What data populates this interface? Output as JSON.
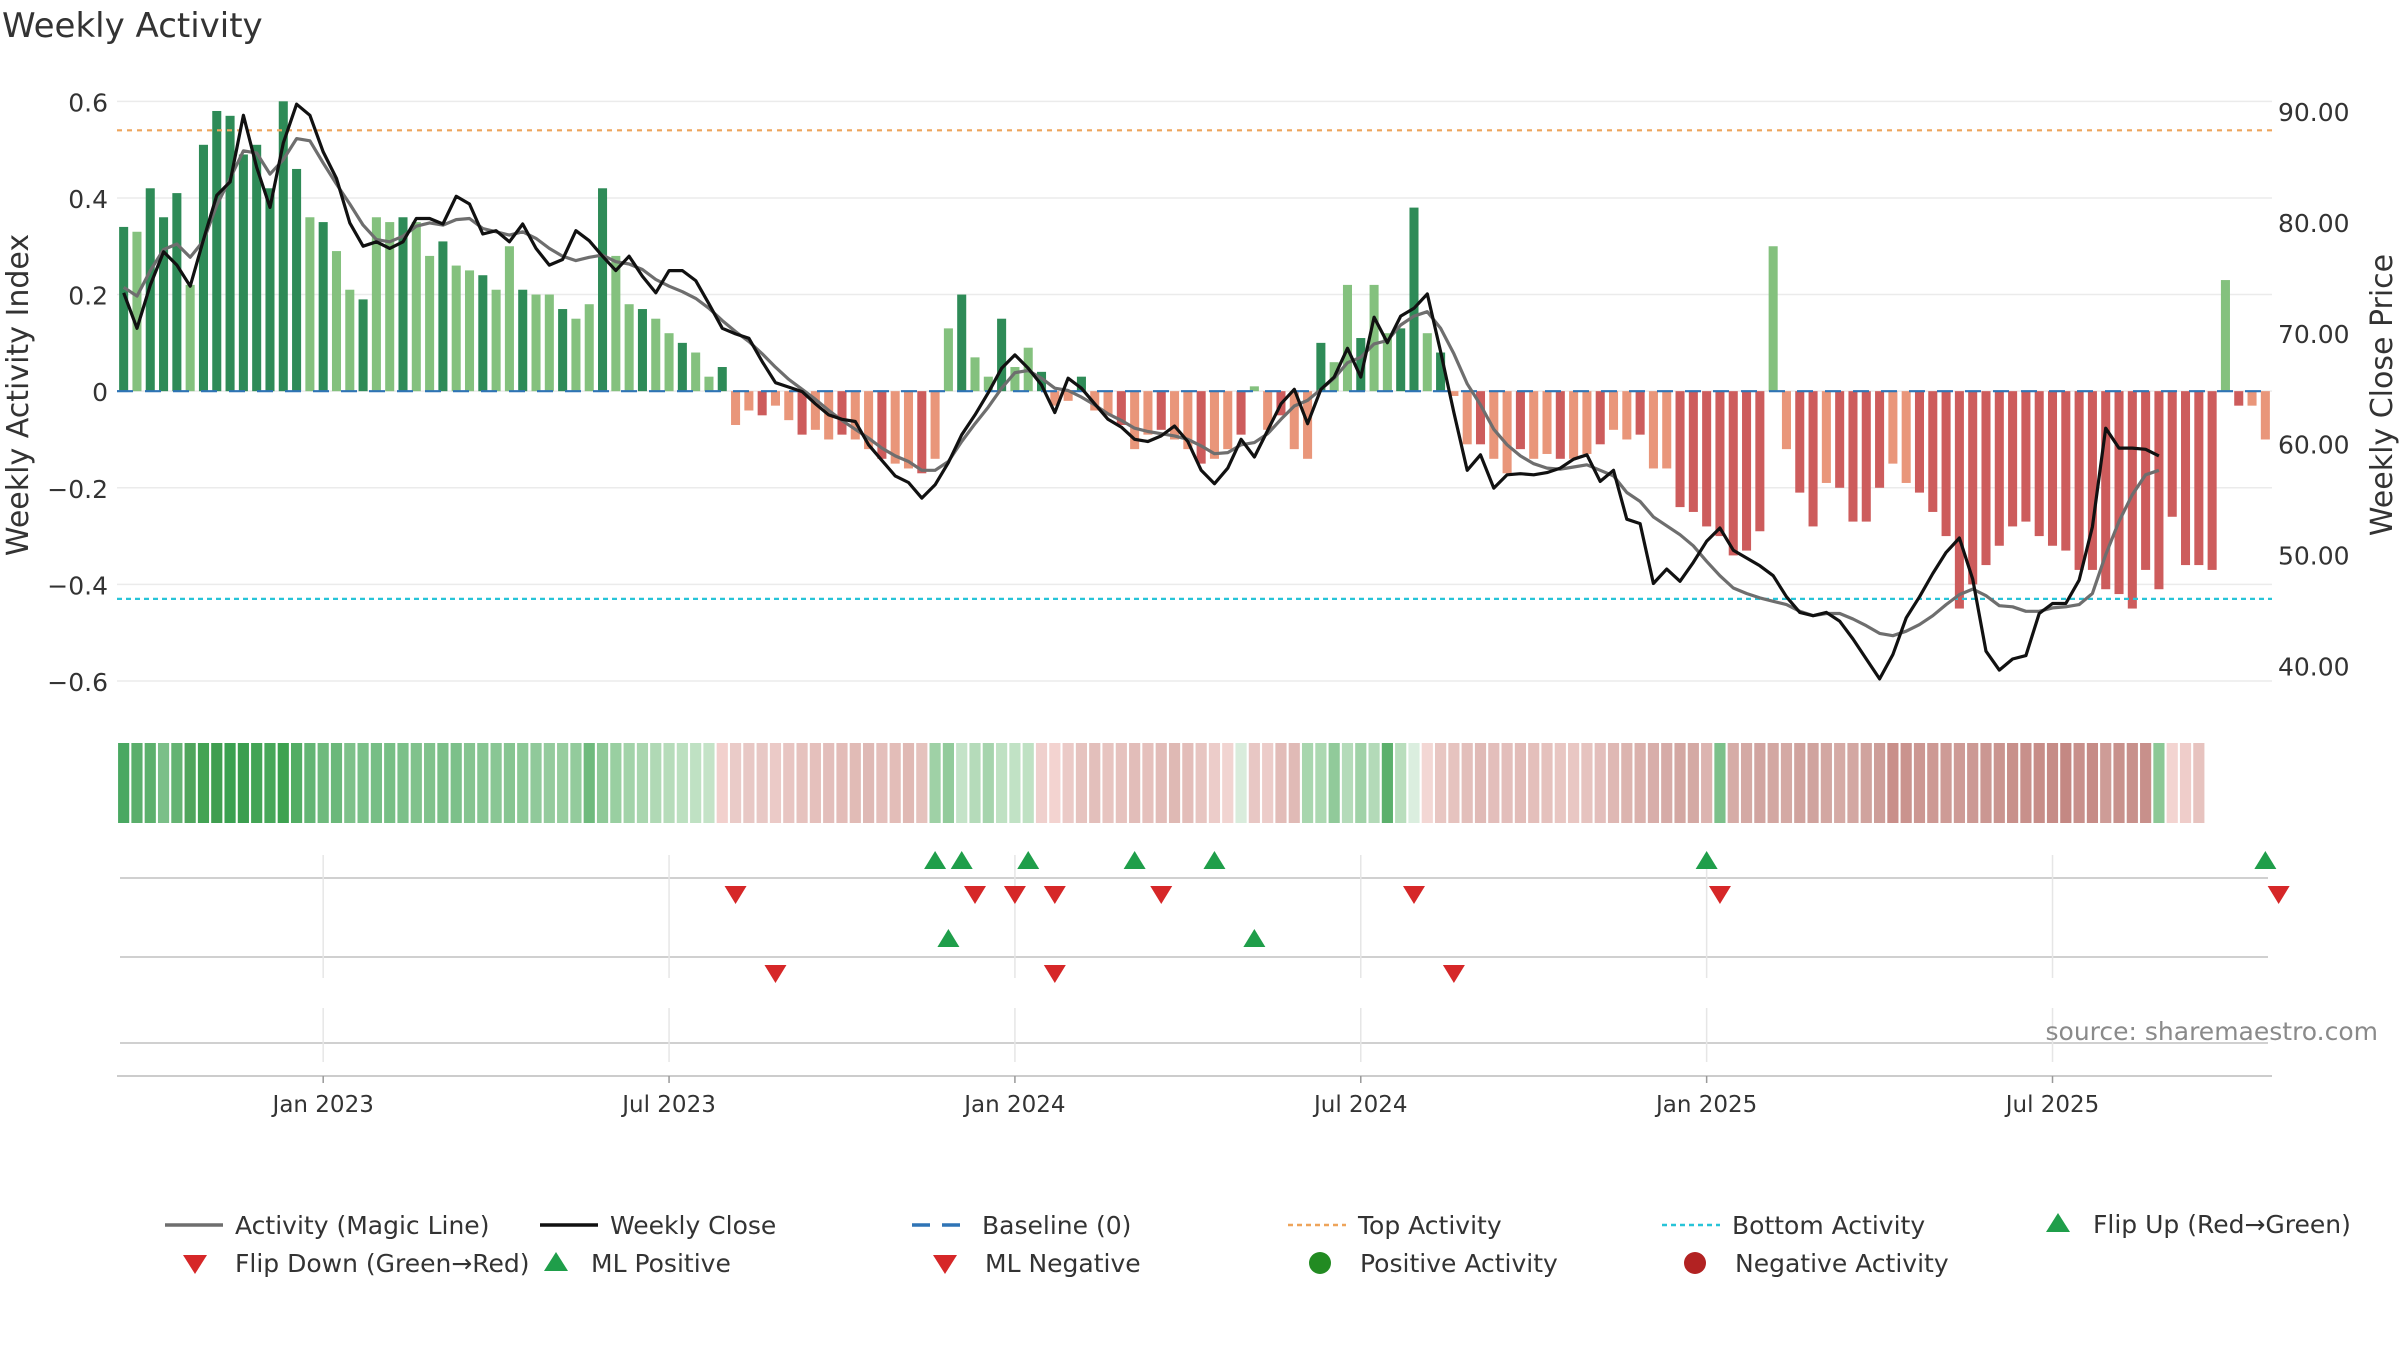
{
  "chart_data": {
    "type": "bar",
    "title": "Weekly Activity",
    "ylabel_left": "Weekly Activity Index",
    "ylabel_right": "Weekly Close Price",
    "ylim_left": [
      -0.66,
      0.64
    ],
    "ylim_right": [
      36.0,
      92.6
    ],
    "yticks_left": [
      {
        "v": 0.6,
        "label": "0.6"
      },
      {
        "v": 0.4,
        "label": "0.4"
      },
      {
        "v": 0.2,
        "label": "0.2"
      },
      {
        "v": 0,
        "label": "0"
      },
      {
        "v": -0.2,
        "label": "−0.2"
      },
      {
        "v": -0.4,
        "label": "−0.4"
      },
      {
        "v": -0.6,
        "label": "−0.6"
      }
    ],
    "yticks_right": [
      {
        "v": 90,
        "label": "90.00"
      },
      {
        "v": 80,
        "label": "80.00"
      },
      {
        "v": 70,
        "label": "70.00"
      },
      {
        "v": 60,
        "label": "60.00"
      },
      {
        "v": 50,
        "label": "50.00"
      },
      {
        "v": 40,
        "label": "40.00"
      }
    ],
    "xticks": [
      {
        "week": 15,
        "label": "Jan 2023"
      },
      {
        "week": 41,
        "label": "Jul 2023"
      },
      {
        "week": 67,
        "label": "Jan 2024"
      },
      {
        "week": 93,
        "label": "Jul 2024"
      },
      {
        "week": 119,
        "label": "Jan 2025"
      },
      {
        "week": 145,
        "label": "Jul 2025"
      }
    ],
    "top_activity": 0.54,
    "bottom_activity": -0.43,
    "baseline": 0,
    "activity": [
      0.34,
      0.33,
      0.42,
      0.36,
      0.41,
      0.22,
      0.51,
      0.58,
      0.57,
      0.49,
      0.51,
      0.42,
      0.6,
      0.46,
      0.36,
      0.35,
      0.29,
      0.21,
      0.19,
      0.36,
      0.35,
      0.36,
      0.35,
      0.28,
      0.31,
      0.26,
      0.25,
      0.24,
      0.21,
      0.3,
      0.21,
      0.2,
      0.2,
      0.17,
      0.15,
      0.18,
      0.42,
      0.28,
      0.18,
      0.17,
      0.15,
      0.12,
      0.1,
      0.08,
      0.03,
      0.05,
      -0.07,
      -0.04,
      -0.05,
      -0.03,
      -0.06,
      -0.09,
      -0.08,
      -0.1,
      -0.09,
      -0.1,
      -0.12,
      -0.14,
      -0.15,
      -0.16,
      -0.17,
      -0.14,
      0.13,
      0.2,
      0.07,
      0.03,
      0.15,
      0.05,
      0.09,
      0.04,
      -0.03,
      -0.02,
      0.03,
      -0.04,
      -0.05,
      -0.07,
      -0.12,
      -0.09,
      -0.08,
      -0.1,
      -0.12,
      -0.15,
      -0.14,
      -0.12,
      -0.09,
      0.01,
      -0.08,
      -0.05,
      -0.12,
      -0.14,
      0.1,
      0.06,
      0.22,
      0.11,
      0.22,
      0.12,
      0.13,
      0.38,
      0.12,
      0.08,
      -0.01,
      -0.11,
      -0.11,
      -0.14,
      -0.17,
      -0.12,
      -0.14,
      -0.13,
      -0.14,
      -0.14,
      -0.13,
      -0.11,
      -0.08,
      -0.1,
      -0.09,
      -0.16,
      -0.16,
      -0.24,
      -0.25,
      -0.28,
      -0.3,
      -0.34,
      -0.33,
      -0.29,
      0.3,
      -0.12,
      -0.21,
      -0.28,
      -0.19,
      -0.2,
      -0.27,
      -0.27,
      -0.2,
      -0.15,
      -0.19,
      -0.21,
      -0.25,
      -0.3,
      -0.45,
      -0.4,
      -0.36,
      -0.32,
      -0.28,
      -0.27,
      -0.3,
      -0.32,
      -0.33,
      -0.37,
      -0.37,
      -0.41,
      -0.42,
      -0.45,
      -0.37,
      -0.41,
      -0.26,
      -0.36,
      -0.36,
      -0.37,
      0.23,
      -0.03,
      -0.03,
      -0.1
    ],
    "close": [
      73.6,
      70.4,
      74.3,
      77.3,
      76.1,
      74.2,
      78.4,
      82.4,
      83.6,
      89.6,
      84.9,
      81.3,
      87.1,
      90.6,
      89.6,
      86.3,
      83.9,
      79.9,
      77.8,
      78.2,
      77.6,
      78.2,
      80.3,
      80.3,
      79.8,
      82.3,
      81.6,
      78.9,
      79.2,
      78.2,
      79.8,
      77.6,
      76.1,
      76.6,
      79.2,
      78.3,
      76.9,
      75.6,
      76.9,
      75.1,
      73.6,
      75.6,
      75.6,
      74.7,
      72.6,
      70.4,
      69.9,
      69.5,
      67.4,
      65.5,
      65.1,
      64.7,
      63.6,
      62.6,
      62.2,
      62.0,
      59.9,
      58.5,
      57.1,
      56.5,
      55.1,
      56.3,
      58.3,
      60.8,
      62.6,
      64.6,
      66.8,
      68.0,
      66.8,
      65.3,
      62.8,
      65.9,
      65.0,
      63.6,
      62.2,
      61.5,
      60.4,
      60.2,
      60.7,
      61.6,
      60.2,
      57.6,
      56.4,
      57.8,
      60.4,
      58.8,
      61.2,
      63.6,
      64.9,
      61.8,
      64.9,
      66.0,
      68.6,
      66.0,
      71.4,
      69.1,
      71.5,
      72.2,
      73.5,
      68.3,
      62.8,
      57.6,
      59.0,
      56.0,
      57.2,
      57.3,
      57.2,
      57.4,
      57.8,
      58.6,
      59.0,
      56.6,
      57.6,
      53.2,
      52.8,
      47.4,
      48.7,
      47.6,
      49.3,
      51.2,
      52.4,
      50.4,
      49.7,
      49.0,
      48.1,
      46.2,
      44.8,
      44.5,
      44.8,
      44.0,
      42.4,
      40.6,
      38.8,
      41.0,
      44.3,
      46.2,
      48.3,
      50.2,
      51.5,
      47.8,
      41.3,
      39.6,
      40.6,
      40.9,
      44.7,
      45.6,
      45.6,
      47.7,
      52.5,
      61.4,
      59.6,
      59.6,
      59.5,
      58.9
    ],
    "magic_line": [
      74.1,
      73.3,
      75.6,
      77.5,
      78.0,
      76.8,
      78.3,
      81.5,
      83.9,
      86.4,
      86.2,
      84.3,
      85.6,
      87.5,
      87.3,
      85.3,
      83.4,
      81.6,
      79.7,
      78.4,
      78.2,
      78.7,
      79.6,
      79.9,
      79.7,
      80.2,
      80.3,
      79.4,
      79.1,
      78.8,
      79.1,
      78.5,
      77.6,
      76.9,
      76.5,
      76.8,
      77.0,
      76.4,
      76.2,
      75.7,
      74.8,
      74.2,
      73.7,
      73.1,
      72.2,
      71.1,
      70.1,
      69.2,
      68.1,
      66.9,
      65.8,
      64.9,
      64.0,
      63.0,
      62.1,
      61.3,
      60.5,
      59.6,
      58.9,
      58.4,
      57.6,
      57.6,
      58.4,
      60.2,
      61.8,
      63.3,
      65.0,
      66.4,
      66.6,
      65.9,
      65.0,
      64.8,
      64.2,
      63.5,
      62.7,
      62.1,
      61.4,
      61.1,
      60.9,
      60.7,
      60.4,
      59.8,
      59.1,
      59.2,
      59.9,
      60.1,
      60.9,
      62.2,
      63.4,
      63.9,
      64.9,
      65.9,
      67.3,
      67.8,
      69.0,
      69.3,
      70.7,
      71.5,
      71.9,
      70.4,
      68.1,
      65.4,
      63.5,
      61.3,
      59.9,
      58.9,
      58.2,
      57.8,
      57.7,
      57.9,
      58.1,
      57.6,
      57.1,
      55.6,
      54.8,
      53.4,
      52.6,
      51.8,
      50.8,
      49.4,
      48.1,
      47.0,
      46.5,
      46.1,
      45.8,
      45.5,
      44.9,
      44.5,
      44.7,
      44.7,
      44.2,
      43.6,
      42.9,
      42.7,
      43.1,
      43.7,
      44.5,
      45.5,
      46.4,
      46.9,
      46.3,
      45.4,
      45.3,
      44.9,
      44.9,
      45.2,
      45.3,
      45.5,
      46.5,
      50.0,
      53.0,
      55.4,
      57.2,
      57.6
    ],
    "color_strip": [
      "#4aa862",
      "#5aae6b",
      "#5cb06c",
      "#7bbf88",
      "#64b372",
      "#4fa55c",
      "#43a354",
      "#3f9e50",
      "#3aa050",
      "#3b9e4f",
      "#43a455",
      "#47a759",
      "#3da250",
      "#52ad64",
      "#63b574",
      "#6fba7d",
      "#6bb87a",
      "#7ec18a",
      "#7ac088",
      "#76be85",
      "#77bf85",
      "#7bc089",
      "#80c28c",
      "#80c28c",
      "#7bbf88",
      "#7cc08a",
      "#85c490",
      "#86c592",
      "#89c694",
      "#86c591",
      "#8cc896",
      "#90c99a",
      "#94cb9d",
      "#97cd9f",
      "#93cb9c",
      "#6fba7d",
      "#8fc998",
      "#99cfa1",
      "#a2d3a9",
      "#a9d6af",
      "#b0d9b5",
      "#b6dcba",
      "#bce0c0",
      "#bfe1c3",
      "#c4e3c7",
      "#f2d0cd",
      "#eacbc8",
      "#e8c8c5",
      "#e8c8c5",
      "#ebcac7",
      "#e8c5c2",
      "#e6c2be",
      "#e5c0bc",
      "#e3bebb",
      "#e3bcb8",
      "#e1bbb6",
      "#dfb9b5",
      "#e4bfbb",
      "#e3bdb8",
      "#e0b9b4",
      "#e5c2bd",
      "#9fd1a6",
      "#92cb9b",
      "#c4e3c8",
      "#b5dbba",
      "#a6d4ad",
      "#bfe1c3",
      "#c1e2c5",
      "#bfe1c3",
      "#efd0cd",
      "#f3d3d0",
      "#ebcac7",
      "#e6c3bf",
      "#e3bfbb",
      "#e7c4c0",
      "#e6c2be",
      "#e2bdb9",
      "#e5c0bc",
      "#e2bcb8",
      "#dfb9b4",
      "#e3bdb9",
      "#e7c5c1",
      "#ecccc9",
      "#f1d4d1",
      "#d9ecdc",
      "#e8c7c4",
      "#ecccc9",
      "#e2bcb8",
      "#e0bab6",
      "#a8d6ae",
      "#acd8b1",
      "#91ca9a",
      "#b4dbb9",
      "#a0d2a7",
      "#b3dab8",
      "#5cb06c",
      "#b9debd",
      "#dbeedf",
      "#f3d7d4",
      "#e8c6c2",
      "#e6c3bf",
      "#e3bfbb",
      "#e0bab6",
      "#e3bebb",
      "#e3bebb",
      "#e2bcb8",
      "#e4bfbb",
      "#e5c1bd",
      "#e8c6c2",
      "#e9c7c3",
      "#e6c3bf",
      "#e3bebb",
      "#dfb8b4",
      "#dcb4af",
      "#dab1ac",
      "#d8aeaa",
      "#d6aba7",
      "#d3a7a2",
      "#d4a9a4",
      "#dcb4b0",
      "#7cc08a",
      "#d6aca7",
      "#d4a9a4",
      "#d1a4a0",
      "#d3a7a2",
      "#d4a9a4",
      "#d0a39e",
      "#d0a39e",
      "#d3a7a2",
      "#d5aaa5",
      "#d3a7a2",
      "#d0a39e",
      "#cd9e99",
      "#c98f8a",
      "#ca938e",
      "#cc9792",
      "#cd9994",
      "#ce9b96",
      "#ce9b96",
      "#cc9994",
      "#cb9792",
      "#ca948f",
      "#c8908b",
      "#c8908b",
      "#c78d88",
      "#c68c87",
      "#c48883",
      "#c8908b",
      "#c68c87",
      "#ce9c97",
      "#c8918c",
      "#c8918c",
      "#c8908b",
      "#8cc896",
      "#f3d4d1",
      "#efcdca",
      "#e7c3bf"
    ],
    "flip_up": [
      61,
      63,
      68,
      76,
      82,
      119,
      161
    ],
    "flip_down": [
      46,
      64,
      67,
      70,
      78,
      97,
      120,
      162
    ],
    "ml_positive": [
      62,
      85
    ],
    "ml_negative": [
      49,
      70,
      100
    ],
    "legend": [
      {
        "key": "magic",
        "label": "Activity (Magic Line)"
      },
      {
        "key": "close",
        "label": "Weekly Close"
      },
      {
        "key": "baseline",
        "label": "Baseline (0)"
      },
      {
        "key": "top",
        "label": "Top Activity"
      },
      {
        "key": "bottom",
        "label": "Bottom Activity"
      },
      {
        "key": "flipup",
        "label": "Flip Up (Red→Green)"
      },
      {
        "key": "flipdown",
        "label": "Flip Down (Green→Red)"
      },
      {
        "key": "mlpos",
        "label": "ML Positive"
      },
      {
        "key": "mlneg",
        "label": "ML Negative"
      },
      {
        "key": "posact",
        "label": "Positive Activity"
      },
      {
        "key": "negact",
        "label": "Negative Activity"
      }
    ],
    "source": "source: sharemaestro.com"
  },
  "colors": {
    "magic_line": "#6e6e6e",
    "close_line": "#111111",
    "baseline": "#2f74b5",
    "top_activity": "#eea45a",
    "bottom_activity": "#27c4d8",
    "pos_strong": "#2e8b57",
    "pos_light": "#84c17e",
    "neg_strong": "#cd5c5c",
    "neg_light": "#e9967a",
    "flip_up": "#1f9e4a",
    "flip_down": "#d62728",
    "pos_dot": "#228b22",
    "neg_dot": "#b22222"
  }
}
